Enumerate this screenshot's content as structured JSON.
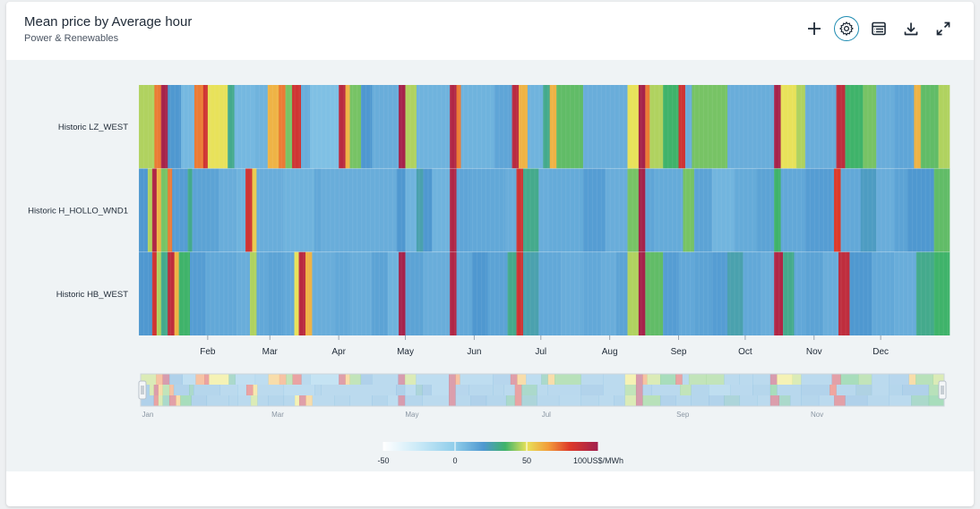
{
  "header": {
    "title": "Mean price by Average hour",
    "subtitle": "Power & Renewables"
  },
  "toolbar": [
    {
      "name": "add-icon",
      "label": "Add"
    },
    {
      "name": "settings-icon",
      "label": "Settings"
    },
    {
      "name": "table-icon",
      "label": "Table"
    },
    {
      "name": "download-icon",
      "label": "Download"
    },
    {
      "name": "expand-icon",
      "label": "Expand"
    }
  ],
  "chart_data": {
    "type": "heatmap",
    "rows": [
      "Historic LZ_WEST",
      "Historic H_HOLLO_WND1",
      "Historic HB_WEST"
    ],
    "x_ticks": [
      "Feb",
      "Mar",
      "Apr",
      "May",
      "Jun",
      "Jul",
      "Aug",
      "Sep",
      "Oct",
      "Nov",
      "Dec"
    ],
    "navigator_ticks": [
      "Jan",
      "Mar",
      "May",
      "Jul",
      "Sep",
      "Nov"
    ],
    "days": 365,
    "colorscale": {
      "min": -50,
      "max": 100,
      "unit": "US$/MWh",
      "tick_labels": [
        "-50",
        "0",
        "50",
        "100US$/MWh"
      ],
      "stops": [
        {
          "v": -50,
          "color": "#ffffff"
        },
        {
          "v": -25,
          "color": "#c9e9f7"
        },
        {
          "v": 0,
          "color": "#8fcdea"
        },
        {
          "v": 20,
          "color": "#4f98d0"
        },
        {
          "v": 35,
          "color": "#3fb36a"
        },
        {
          "v": 50,
          "color": "#e8e25a"
        },
        {
          "v": 65,
          "color": "#f29c3a"
        },
        {
          "v": 80,
          "color": "#de3a2a"
        },
        {
          "v": 100,
          "color": "#a0204f"
        }
      ]
    },
    "row_segments": [
      [
        [
          0,
          7,
          45
        ],
        [
          7,
          10,
          70
        ],
        [
          10,
          13,
          98
        ],
        [
          13,
          19,
          20
        ],
        [
          19,
          25,
          8
        ],
        [
          25,
          29,
          70
        ],
        [
          29,
          31,
          85
        ],
        [
          31,
          40,
          50
        ],
        [
          40,
          43,
          30
        ],
        [
          43,
          52,
          8
        ],
        [
          52,
          58,
          10
        ],
        [
          58,
          63,
          60
        ],
        [
          63,
          66,
          70
        ],
        [
          66,
          69,
          40
        ],
        [
          69,
          73,
          85
        ],
        [
          73,
          77,
          12
        ],
        [
          77,
          90,
          5
        ],
        [
          90,
          93,
          92
        ],
        [
          93,
          95,
          60
        ],
        [
          95,
          100,
          40
        ],
        [
          100,
          105,
          20
        ],
        [
          105,
          117,
          12
        ],
        [
          117,
          120,
          98
        ],
        [
          120,
          125,
          45
        ],
        [
          125,
          140,
          10
        ],
        [
          140,
          143,
          95
        ],
        [
          143,
          145,
          70
        ],
        [
          145,
          160,
          10
        ],
        [
          160,
          168,
          15
        ],
        [
          168,
          171,
          92
        ],
        [
          171,
          175,
          60
        ],
        [
          175,
          182,
          10
        ],
        [
          182,
          185,
          30
        ],
        [
          185,
          188,
          60
        ],
        [
          188,
          200,
          38
        ],
        [
          200,
          210,
          12
        ],
        [
          210,
          220,
          12
        ],
        [
          220,
          225,
          50
        ],
        [
          225,
          228,
          98
        ],
        [
          228,
          230,
          70
        ],
        [
          230,
          236,
          45
        ],
        [
          236,
          243,
          35
        ],
        [
          243,
          246,
          85
        ],
        [
          246,
          249,
          12
        ],
        [
          249,
          257,
          40
        ],
        [
          257,
          265,
          40
        ],
        [
          265,
          272,
          12
        ],
        [
          272,
          278,
          12
        ],
        [
          278,
          286,
          12
        ],
        [
          286,
          289,
          98
        ],
        [
          289,
          296,
          50
        ],
        [
          296,
          300,
          45
        ],
        [
          300,
          314,
          12
        ],
        [
          314,
          318,
          90
        ],
        [
          318,
          326,
          35
        ],
        [
          326,
          332,
          40
        ],
        [
          332,
          340,
          12
        ],
        [
          340,
          349,
          15
        ],
        [
          349,
          352,
          60
        ],
        [
          352,
          360,
          38
        ],
        [
          360,
          365,
          45
        ]
      ],
      [
        [
          0,
          4,
          20
        ],
        [
          4,
          6,
          45
        ],
        [
          6,
          8,
          95
        ],
        [
          8,
          10,
          60
        ],
        [
          10,
          13,
          40
        ],
        [
          13,
          15,
          70
        ],
        [
          15,
          22,
          18
        ],
        [
          22,
          24,
          30
        ],
        [
          24,
          36,
          16
        ],
        [
          36,
          44,
          12
        ],
        [
          44,
          48,
          10
        ],
        [
          48,
          51,
          85
        ],
        [
          51,
          53,
          55
        ],
        [
          53,
          65,
          12
        ],
        [
          65,
          79,
          10
        ],
        [
          79,
          82,
          14
        ],
        [
          82,
          116,
          12
        ],
        [
          116,
          120,
          20
        ],
        [
          120,
          125,
          10
        ],
        [
          125,
          128,
          25
        ],
        [
          128,
          132,
          20
        ],
        [
          132,
          140,
          10
        ],
        [
          140,
          143,
          95
        ],
        [
          143,
          149,
          15
        ],
        [
          149,
          160,
          14
        ],
        [
          160,
          165,
          14
        ],
        [
          165,
          170,
          12
        ],
        [
          170,
          173,
          85
        ],
        [
          173,
          180,
          30
        ],
        [
          180,
          185,
          12
        ],
        [
          185,
          200,
          13
        ],
        [
          200,
          210,
          18
        ],
        [
          210,
          220,
          12
        ],
        [
          220,
          225,
          40
        ],
        [
          225,
          228,
          98
        ],
        [
          228,
          232,
          15
        ],
        [
          232,
          245,
          13
        ],
        [
          245,
          250,
          40
        ],
        [
          250,
          258,
          16
        ],
        [
          258,
          268,
          9
        ],
        [
          268,
          278,
          13
        ],
        [
          278,
          286,
          16
        ],
        [
          286,
          289,
          35
        ],
        [
          289,
          300,
          14
        ],
        [
          300,
          313,
          18
        ],
        [
          313,
          316,
          80
        ],
        [
          316,
          325,
          14
        ],
        [
          325,
          332,
          22
        ],
        [
          332,
          340,
          12
        ],
        [
          340,
          346,
          16
        ],
        [
          346,
          358,
          20
        ],
        [
          358,
          365,
          38
        ]
      ],
      [
        [
          0,
          6,
          20
        ],
        [
          6,
          8,
          85
        ],
        [
          8,
          10,
          45
        ],
        [
          10,
          13,
          30
        ],
        [
          13,
          16,
          90
        ],
        [
          16,
          18,
          60
        ],
        [
          18,
          23,
          35
        ],
        [
          23,
          30,
          18
        ],
        [
          30,
          40,
          14
        ],
        [
          40,
          44,
          14
        ],
        [
          44,
          50,
          12
        ],
        [
          50,
          53,
          45
        ],
        [
          53,
          58,
          14
        ],
        [
          58,
          65,
          16
        ],
        [
          65,
          70,
          14
        ],
        [
          70,
          72,
          50
        ],
        [
          72,
          75,
          92
        ],
        [
          75,
          78,
          60
        ],
        [
          78,
          88,
          12
        ],
        [
          88,
          95,
          14
        ],
        [
          95,
          105,
          12
        ],
        [
          105,
          112,
          16
        ],
        [
          112,
          117,
          10
        ],
        [
          117,
          120,
          98
        ],
        [
          120,
          128,
          16
        ],
        [
          128,
          140,
          12
        ],
        [
          140,
          143,
          95
        ],
        [
          143,
          150,
          14
        ],
        [
          150,
          157,
          20
        ],
        [
          157,
          166,
          16
        ],
        [
          166,
          170,
          30
        ],
        [
          170,
          173,
          85
        ],
        [
          173,
          180,
          25
        ],
        [
          180,
          190,
          14
        ],
        [
          190,
          200,
          12
        ],
        [
          200,
          208,
          14
        ],
        [
          208,
          215,
          12
        ],
        [
          215,
          220,
          16
        ],
        [
          220,
          225,
          45
        ],
        [
          225,
          228,
          98
        ],
        [
          228,
          236,
          38
        ],
        [
          236,
          243,
          18
        ],
        [
          243,
          250,
          14
        ],
        [
          250,
          258,
          16
        ],
        [
          258,
          265,
          18
        ],
        [
          265,
          272,
          25
        ],
        [
          272,
          280,
          14
        ],
        [
          280,
          286,
          12
        ],
        [
          286,
          290,
          95
        ],
        [
          290,
          295,
          30
        ],
        [
          295,
          300,
          14
        ],
        [
          300,
          308,
          16
        ],
        [
          308,
          315,
          12
        ],
        [
          315,
          320,
          90
        ],
        [
          320,
          330,
          20
        ],
        [
          330,
          340,
          14
        ],
        [
          340,
          350,
          12
        ],
        [
          350,
          358,
          30
        ],
        [
          358,
          365,
          35
        ]
      ]
    ]
  }
}
